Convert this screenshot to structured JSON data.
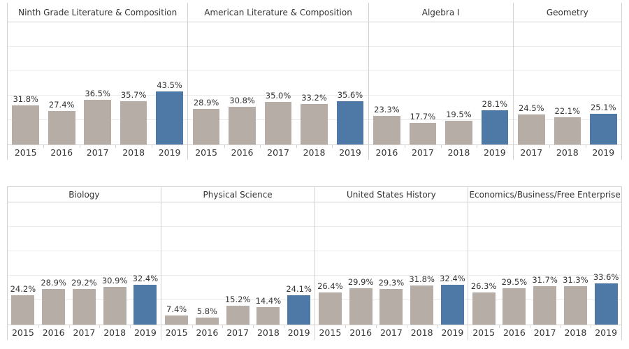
{
  "chart_data": {
    "type": "bar",
    "unit": "%",
    "ylim": [
      0,
      100
    ],
    "gridlines_pct": [
      20,
      40,
      60,
      80
    ],
    "grid": "on",
    "legend": "none",
    "highlight_category": "2019",
    "colors": {
      "bar_default": "#b5ada6",
      "bar_highlight": "#4e79a7",
      "gridline": "#ececec",
      "border": "#d4d2d0",
      "text": "#333333"
    },
    "rows": [
      {
        "panels": [
          {
            "title": "Ninth Grade Literature & Composition",
            "categories": [
              "2015",
              "2016",
              "2017",
              "2018",
              "2019"
            ],
            "values": [
              31.8,
              27.4,
              36.5,
              35.7,
              43.5
            ],
            "labels": [
              "31.8%",
              "27.4%",
              "36.5%",
              "35.7%",
              "43.5%"
            ]
          },
          {
            "title": "American Literature & Composition",
            "categories": [
              "2015",
              "2016",
              "2017",
              "2018",
              "2019"
            ],
            "values": [
              28.9,
              30.8,
              35.0,
              33.2,
              35.6
            ],
            "labels": [
              "28.9%",
              "30.8%",
              "35.0%",
              "33.2%",
              "35.6%"
            ]
          },
          {
            "title": "Algebra I",
            "categories": [
              "2016",
              "2017",
              "2018",
              "2019"
            ],
            "values": [
              23.3,
              17.7,
              19.5,
              28.1
            ],
            "labels": [
              "23.3%",
              "17.7%",
              "19.5%",
              "28.1%"
            ]
          },
          {
            "title": "Geometry",
            "categories": [
              "2017",
              "2018",
              "2019"
            ],
            "values": [
              24.5,
              22.1,
              25.1
            ],
            "labels": [
              "24.5%",
              "22.1%",
              "25.1%"
            ]
          }
        ]
      },
      {
        "panels": [
          {
            "title": "Biology",
            "categories": [
              "2015",
              "2016",
              "2017",
              "2018",
              "2019"
            ],
            "values": [
              24.2,
              28.9,
              29.2,
              30.9,
              32.4
            ],
            "labels": [
              "24.2%",
              "28.9%",
              "29.2%",
              "30.9%",
              "32.4%"
            ]
          },
          {
            "title": "Physical Science",
            "categories": [
              "2015",
              "2016",
              "2017",
              "2018",
              "2019"
            ],
            "values": [
              7.4,
              5.8,
              15.2,
              14.4,
              24.1
            ],
            "labels": [
              "7.4%",
              "5.8%",
              "15.2%",
              "14.4%",
              "24.1%"
            ]
          },
          {
            "title": "United States History",
            "categories": [
              "2015",
              "2016",
              "2017",
              "2018",
              "2019"
            ],
            "values": [
              26.4,
              29.9,
              29.3,
              31.8,
              32.4
            ],
            "labels": [
              "26.4%",
              "29.9%",
              "29.3%",
              "31.8%",
              "32.4%"
            ]
          },
          {
            "title": "Economics/Business/Free Enterprise",
            "categories": [
              "2015",
              "2016",
              "2017",
              "2018",
              "2019"
            ],
            "values": [
              26.3,
              29.5,
              31.7,
              31.3,
              33.6
            ],
            "labels": [
              "26.3%",
              "29.5%",
              "31.7%",
              "31.3%",
              "33.6%"
            ]
          }
        ]
      }
    ]
  }
}
